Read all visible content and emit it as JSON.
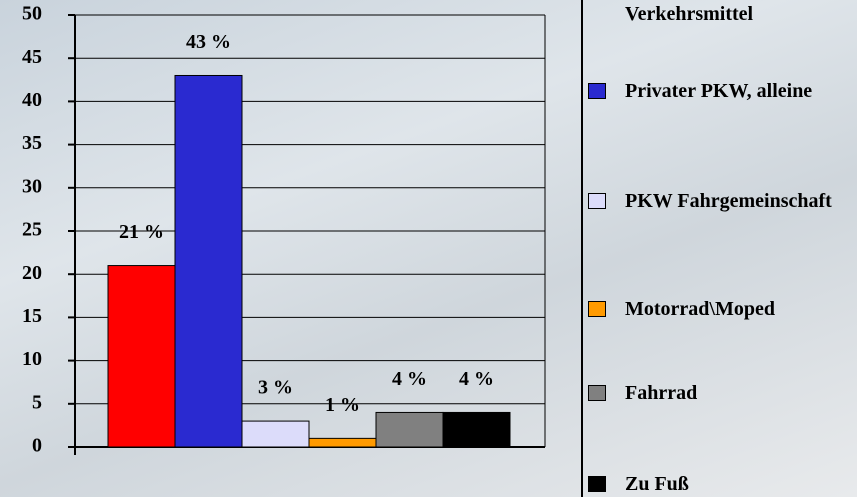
{
  "chart_data": {
    "type": "bar",
    "categories": [
      null,
      "Privater PKW, alleine",
      "PKW Fahrgemeinschaft",
      "Motorrad\\Moped",
      "Fahrrad",
      "Zu Fuß"
    ],
    "values": [
      21,
      43,
      3,
      1,
      4,
      4
    ],
    "value_labels": [
      "21 %",
      "43 %",
      "3 %",
      "1 %",
      "4 %",
      "4 %"
    ],
    "colors": [
      "#ff0000",
      "#2a2ad0",
      "#dcdcfa",
      "#ff9a00",
      "#808080",
      "#000000"
    ],
    "legend_title": "Verkehrsmittel",
    "ylim": [
      0,
      50
    ],
    "yticks": [
      0,
      5,
      10,
      15,
      20,
      25,
      30,
      35,
      40,
      45,
      50
    ],
    "grid": true
  }
}
